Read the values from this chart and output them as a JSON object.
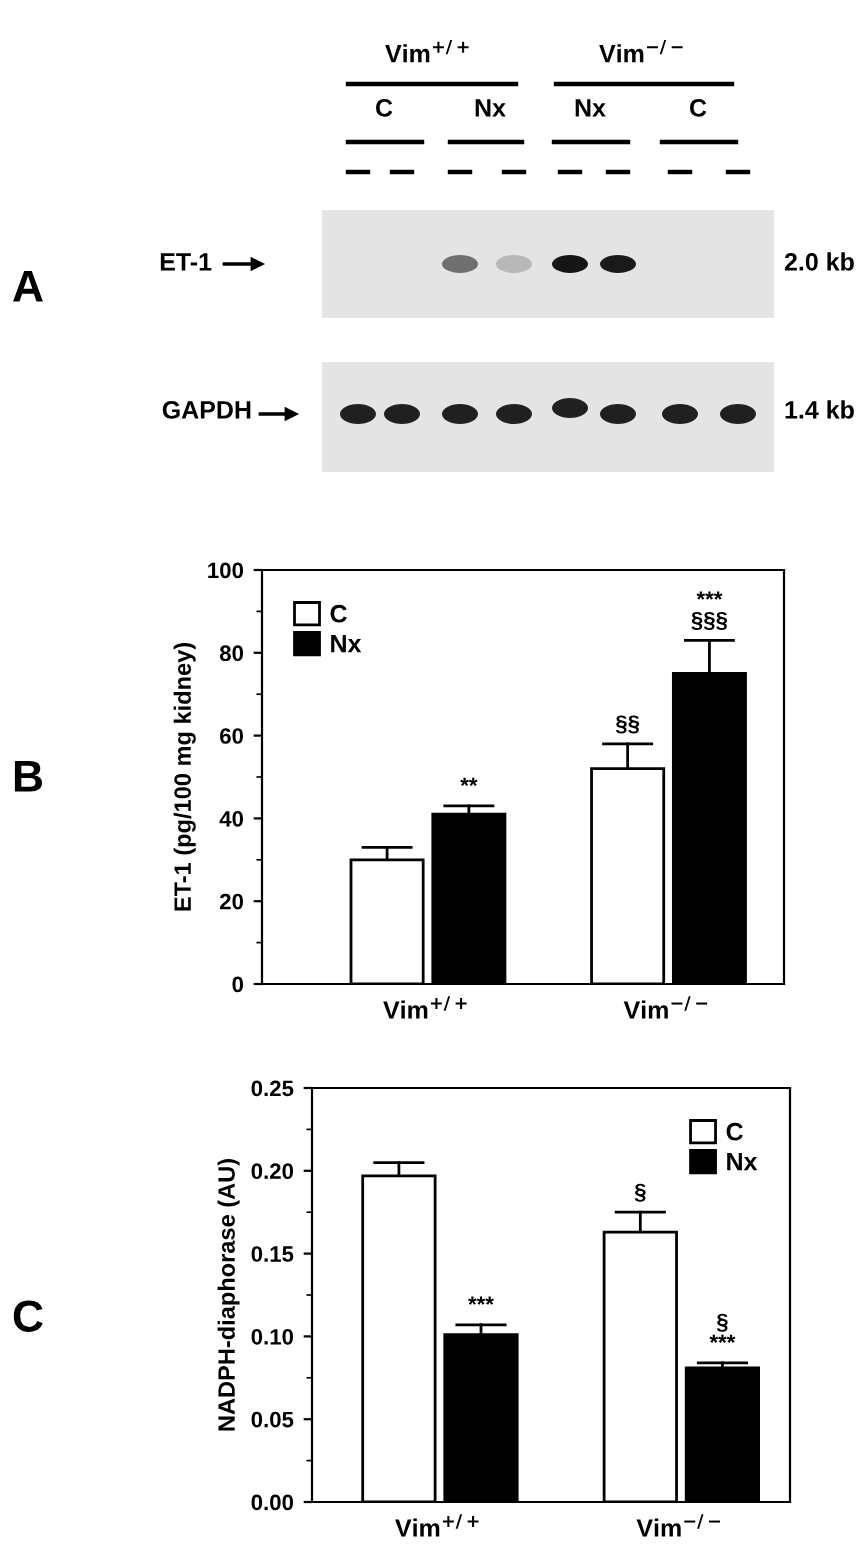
{
  "chart_data": [
    {
      "type": "other",
      "title": "A",
      "annotations": [
        "Vim$^{+/+}$",
        "Vim$^{−/−}$",
        "C",
        "Nx",
        "Nx",
        "C",
        "ET-1",
        "2.0 kb",
        "GAPDH",
        "1.4 kb"
      ]
    },
    {
      "type": "bar",
      "title": "B",
      "ylabel": "ET-1 (pg/100 mg kidney)",
      "categories": [
        "Vim$^{+/+}$",
        "Vim$^{−/−}$"
      ],
      "series": [
        {
          "name": "C",
          "color": "#ffffff",
          "values": [
            30,
            52
          ],
          "errors": [
            [
              30,
              33
            ],
            [
              52,
              58
            ]
          ],
          "value_labels": [
            null,
            "§§"
          ]
        },
        {
          "name": "Nx",
          "color": "#000000",
          "values": [
            41,
            75
          ],
          "errors": [
            [
              41,
              43
            ],
            [
              75,
              83
            ]
          ],
          "value_labels": [
            "**",
            "***\n§§§"
          ]
        }
      ],
      "ylim": [
        0,
        100
      ],
      "yticks": [
        0,
        20,
        40,
        60,
        80,
        100
      ],
      "grid": false,
      "legend": "top left"
    },
    {
      "type": "bar",
      "title": "C",
      "ylabel": "NADPH-diaphorase (AU)",
      "categories": [
        "Vim$^{+/+}$",
        "Vim$^{−/−}$"
      ],
      "series": [
        {
          "name": "C",
          "color": "#ffffff",
          "values": [
            0.197,
            0.163
          ],
          "errors": [
            [
              0.197,
              0.205
            ],
            [
              0.163,
              0.175
            ]
          ],
          "value_labels": [
            null,
            "§"
          ]
        },
        {
          "name": "Nx",
          "color": "#000000",
          "values": [
            0.101,
            0.081
          ],
          "errors": [
            [
              0.101,
              0.107
            ],
            [
              0.081,
              0.084
            ]
          ],
          "value_labels": [
            "***",
            "§\n***"
          ]
        }
      ],
      "ylim": [
        0,
        0.25
      ],
      "yticks": [
        {
          "value": 0,
          "label": "0.00"
        },
        {
          "value": 0.05,
          "label": "0.05"
        },
        {
          "value": 0.1,
          "label": "0.10"
        },
        {
          "value": 0.15,
          "label": "0.15"
        },
        {
          "value": 0.2,
          "label": "0.20"
        },
        {
          "value": 0.25,
          "label": "0.25"
        }
      ],
      "grid": false,
      "legend": "top right"
    }
  ]
}
